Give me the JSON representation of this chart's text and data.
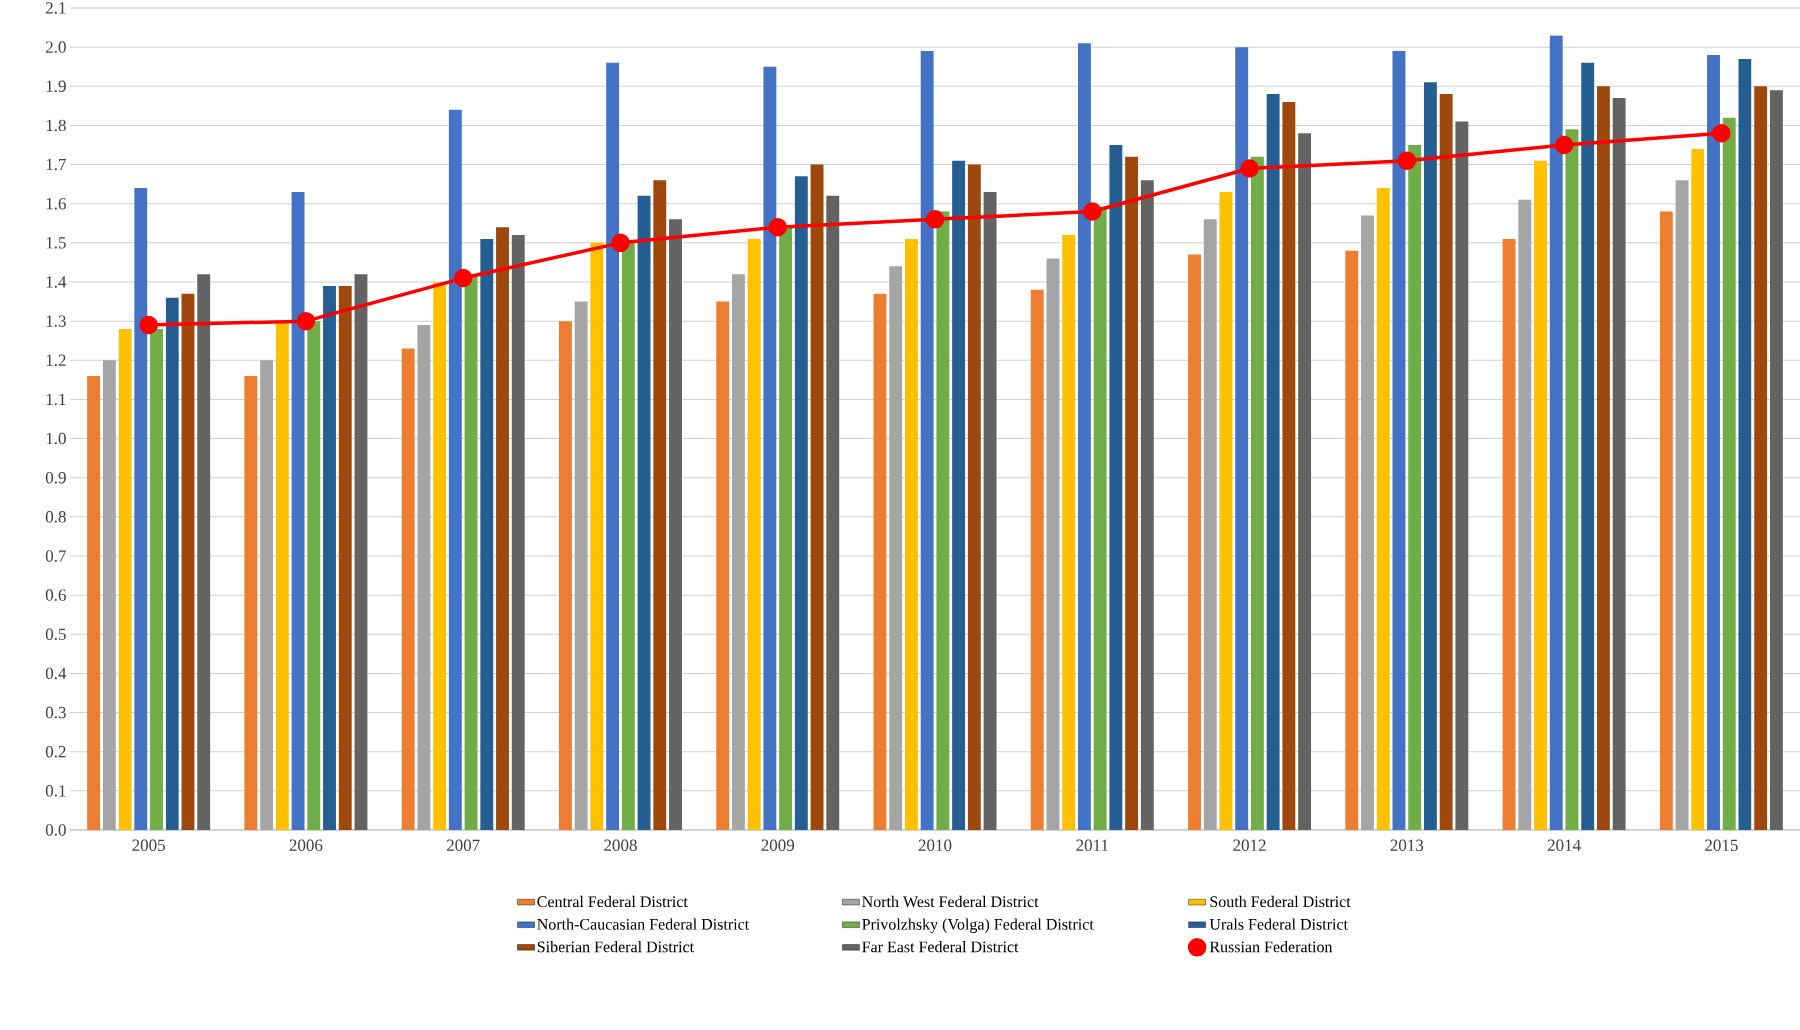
{
  "chart_data": {
    "type": "bar",
    "categories": [
      "2005",
      "2006",
      "2007",
      "2008",
      "2009",
      "2010",
      "2011",
      "2012",
      "2013",
      "2014",
      "2015"
    ],
    "series": [
      {
        "name": "Central Federal District",
        "color": "#ed7d31",
        "values": [
          1.16,
          1.16,
          1.23,
          1.3,
          1.35,
          1.37,
          1.38,
          1.47,
          1.48,
          1.51,
          1.58
        ]
      },
      {
        "name": "North West Federal District",
        "color": "#a5a5a5",
        "values": [
          1.2,
          1.2,
          1.29,
          1.35,
          1.42,
          1.44,
          1.46,
          1.56,
          1.57,
          1.61,
          1.66
        ]
      },
      {
        "name": "South Federal District",
        "color": "#ffc000",
        "values": [
          1.28,
          1.3,
          1.4,
          1.5,
          1.51,
          1.51,
          1.52,
          1.63,
          1.64,
          1.71,
          1.74
        ]
      },
      {
        "name": "North-Caucasian Federal District",
        "color": "#4472c4",
        "values": [
          1.64,
          1.63,
          1.84,
          1.96,
          1.95,
          1.99,
          2.01,
          2.0,
          1.99,
          2.03,
          1.98
        ]
      },
      {
        "name": "Privolzhsky (Volga) Federal District",
        "color": "#70ad47",
        "values": [
          1.28,
          1.3,
          1.42,
          1.5,
          1.54,
          1.58,
          1.59,
          1.72,
          1.75,
          1.79,
          1.82
        ]
      },
      {
        "name": "Urals Federal District",
        "color": "#255e91",
        "values": [
          1.36,
          1.39,
          1.51,
          1.62,
          1.67,
          1.71,
          1.75,
          1.88,
          1.91,
          1.96,
          1.97
        ]
      },
      {
        "name": "Siberian Federal District",
        "color": "#9e480e",
        "values": [
          1.37,
          1.39,
          1.54,
          1.66,
          1.7,
          1.7,
          1.72,
          1.86,
          1.88,
          1.9,
          1.9
        ]
      },
      {
        "name": "Far East Federal District",
        "color": "#636363",
        "values": [
          1.42,
          1.42,
          1.52,
          1.56,
          1.62,
          1.63,
          1.66,
          1.78,
          1.81,
          1.87,
          1.89
        ]
      },
      {
        "name": "Russian Federation",
        "color": "#ff0000",
        "type": "line",
        "marker": "circle",
        "values": [
          1.29,
          1.3,
          1.41,
          1.5,
          1.54,
          1.56,
          1.58,
          1.69,
          1.71,
          1.75,
          1.78
        ]
      }
    ],
    "ylim": [
      0,
      2.1
    ],
    "yticks": [
      {
        "value": 0,
        "label": "0.0"
      },
      {
        "value": 0.1,
        "label": "0.1"
      },
      {
        "value": 0.2,
        "label": "0.2"
      },
      {
        "value": 0.3,
        "label": "0.3"
      },
      {
        "value": 0.4,
        "label": "0.4"
      },
      {
        "value": 0.5,
        "label": "0.5"
      },
      {
        "value": 0.6,
        "label": "0.6"
      },
      {
        "value": 0.7,
        "label": "0.7"
      },
      {
        "value": 0.8,
        "label": "0.8"
      },
      {
        "value": 0.9,
        "label": "0.9"
      },
      {
        "value": 1.0,
        "label": "1.0"
      },
      {
        "value": 1.1,
        "label": "1.1"
      },
      {
        "value": 1.2,
        "label": "1.2"
      },
      {
        "value": 1.3,
        "label": "1.3"
      },
      {
        "value": 1.4,
        "label": "1.4"
      },
      {
        "value": 1.5,
        "label": "1.5"
      },
      {
        "value": 1.6,
        "label": "1.6"
      },
      {
        "value": 1.7,
        "label": "1.7"
      },
      {
        "value": 1.8,
        "label": "1.8"
      },
      {
        "value": 1.9,
        "label": "1.9"
      },
      {
        "value": 2.0,
        "label": "2.0"
      },
      {
        "value": 2.1,
        "label": "2.1"
      }
    ],
    "grid": "y",
    "legend": "bottom"
  }
}
